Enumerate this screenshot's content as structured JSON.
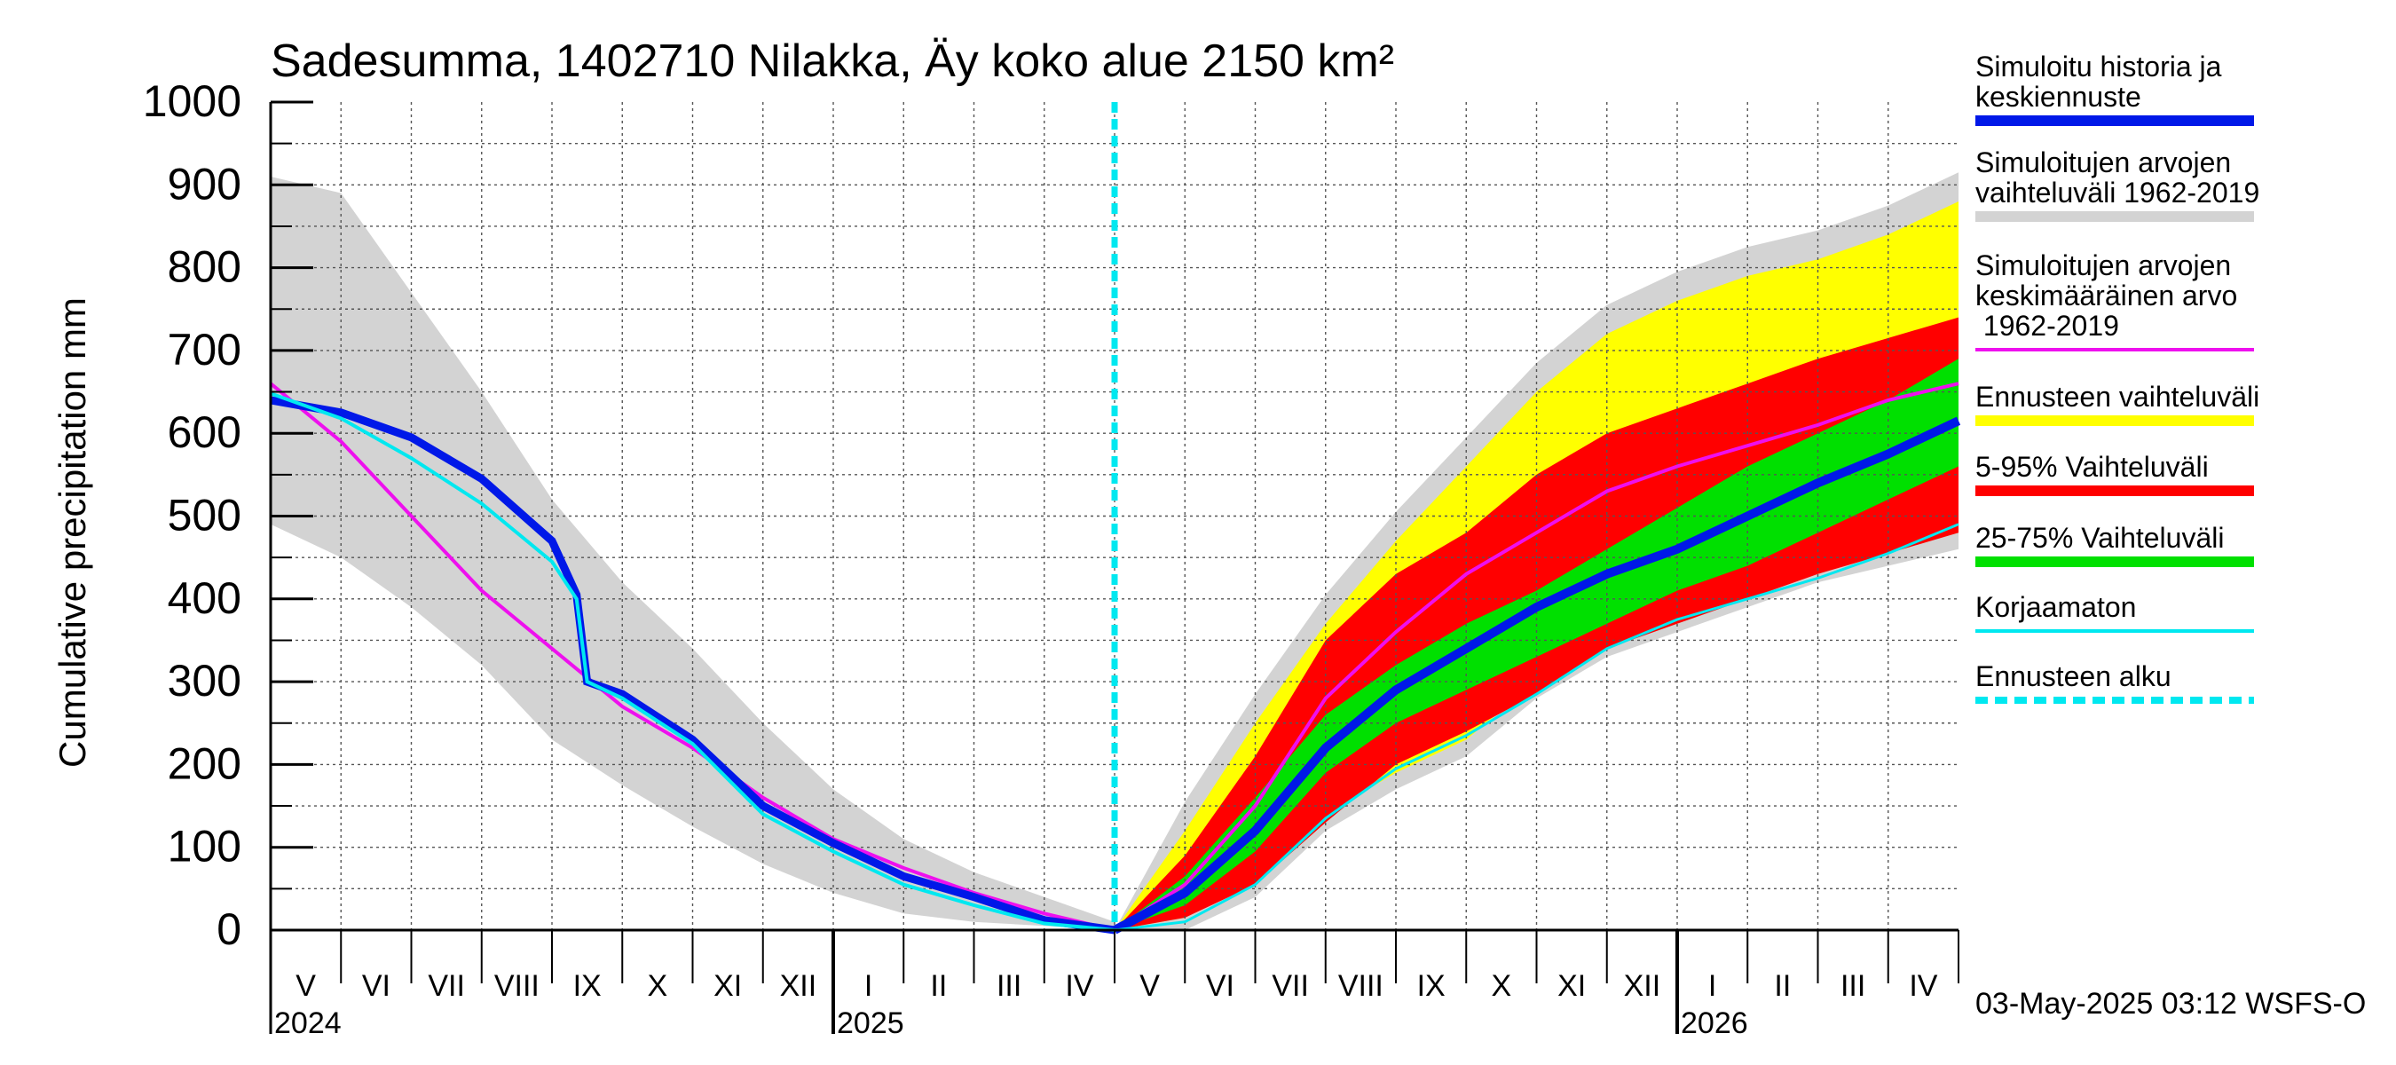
{
  "chart_data": {
    "type": "area",
    "title": "Sadesumma, 1402710 Nilakka, Äy koko alue 2150 km²",
    "ylabel": "Cumulative precipitation   mm",
    "ylim": [
      0,
      1000
    ],
    "yticks": [
      "0",
      "100",
      "200",
      "300",
      "400",
      "500",
      "600",
      "700",
      "800",
      "900",
      "1000"
    ],
    "months": [
      "V",
      "VI",
      "VII",
      "VIII",
      "IX",
      "X",
      "XI",
      "XII",
      "I",
      "II",
      "III",
      "IV",
      "V",
      "VI",
      "VII",
      "VIII",
      "IX",
      "X",
      "XI",
      "XII",
      "I",
      "II",
      "III",
      "IV"
    ],
    "years": [
      {
        "label": "2024",
        "month_index": 0
      },
      {
        "label": "2025",
        "month_index": 8
      },
      {
        "label": "2026",
        "month_index": 20
      }
    ],
    "forecast_start_month": 12,
    "timestamp": "03-May-2025 03:12 WSFS-O",
    "legend": [
      {
        "label": "Simuloitu historia ja keskiennuste",
        "color": "#0018e8",
        "style": "thick"
      },
      {
        "label": "Simuloitujen arvojen vaihteluväli 1962-2019",
        "color": "#d3d3d3",
        "style": "thick"
      },
      {
        "label": "Simuloitujen arvojen keskimääräinen arvo 1962-2019",
        "color": "#ee10ee",
        "style": "thin"
      },
      {
        "label": "Ennusteen vaihteluväli",
        "color": "#ffff00",
        "style": "thick"
      },
      {
        "label": "5-95% Vaihteluväli",
        "color": "#ff0000",
        "style": "thick"
      },
      {
        "label": "25-75% Vaihteluväli",
        "color": "#00e000",
        "style": "thick"
      },
      {
        "label": "Korjaamaton",
        "color": "#00e8f0",
        "style": "thin"
      },
      {
        "label": "Ennusteen alku",
        "color": "#00e8f0",
        "style": "dashed"
      }
    ],
    "series": {
      "history_range": {
        "x": [
          0,
          1,
          2,
          3,
          4,
          5,
          6,
          7,
          8,
          9,
          10,
          11,
          12
        ],
        "upper": [
          910,
          890,
          770,
          650,
          520,
          420,
          340,
          250,
          170,
          110,
          70,
          40,
          10
        ],
        "lower": [
          490,
          450,
          390,
          320,
          230,
          175,
          125,
          80,
          45,
          20,
          10,
          5,
          0
        ]
      },
      "history_mean": {
        "x": [
          0,
          1,
          2,
          3,
          4,
          5,
          6,
          7,
          8,
          9,
          10,
          11,
          12
        ],
        "values": [
          660,
          590,
          500,
          410,
          340,
          270,
          220,
          160,
          110,
          75,
          45,
          20,
          0
        ]
      },
      "simulated": {
        "x": [
          0,
          1,
          2,
          3,
          4,
          4.35,
          4.5,
          5,
          6,
          7,
          8,
          9,
          10,
          11,
          12
        ],
        "values": [
          640,
          625,
          595,
          545,
          470,
          405,
          300,
          285,
          230,
          150,
          105,
          65,
          40,
          12,
          0
        ]
      },
      "uncorrected": {
        "x": [
          0,
          1,
          2,
          3,
          4,
          4.35,
          4.5,
          5,
          6,
          7,
          8,
          9,
          10,
          11,
          12
        ],
        "values": [
          648,
          618,
          570,
          515,
          445,
          400,
          300,
          280,
          225,
          140,
          95,
          55,
          30,
          8,
          0
        ]
      },
      "forecast_range": {
        "x": [
          12,
          13,
          14,
          15,
          16,
          17,
          18,
          19,
          20,
          21,
          22,
          23,
          24
        ],
        "upper": [
          0,
          120,
          250,
          370,
          470,
          560,
          650,
          720,
          760,
          790,
          810,
          840,
          880
        ],
        "lower": [
          0,
          15,
          60,
          140,
          190,
          230,
          300,
          350,
          380,
          410,
          440,
          460,
          480
        ]
      },
      "forecast_5_95": {
        "x": [
          12,
          13,
          14,
          15,
          16,
          17,
          18,
          19,
          20,
          21,
          22,
          23,
          24
        ],
        "upper": [
          0,
          90,
          210,
          350,
          430,
          480,
          550,
          600,
          630,
          660,
          690,
          715,
          740
        ],
        "lower": [
          0,
          15,
          55,
          130,
          200,
          240,
          285,
          340,
          370,
          400,
          430,
          455,
          480
        ]
      },
      "forecast_25_75": {
        "x": [
          12,
          13,
          14,
          15,
          16,
          17,
          18,
          19,
          20,
          21,
          22,
          23,
          24
        ],
        "upper": [
          0,
          65,
          160,
          260,
          320,
          370,
          410,
          460,
          510,
          560,
          600,
          640,
          690
        ],
        "lower": [
          0,
          30,
          95,
          190,
          250,
          290,
          330,
          370,
          410,
          440,
          480,
          520,
          560
        ]
      },
      "forecast_median": {
        "x": [
          12,
          13,
          14,
          15,
          16,
          17,
          18,
          19,
          20,
          21,
          22,
          23,
          24
        ],
        "values": [
          0,
          45,
          120,
          220,
          290,
          340,
          390,
          430,
          460,
          500,
          540,
          575,
          615
        ]
      },
      "forecast_mean": {
        "x": [
          12,
          13,
          14,
          15,
          16,
          17,
          18,
          19,
          20,
          21,
          22,
          23,
          24
        ],
        "values": [
          0,
          55,
          150,
          280,
          360,
          430,
          480,
          530,
          560,
          585,
          610,
          640,
          660
        ]
      },
      "forecast_uncorrected": {
        "x": [
          12,
          13,
          14,
          15,
          16,
          17,
          18,
          19,
          20,
          21,
          22,
          23,
          24
        ],
        "values": [
          0,
          10,
          55,
          135,
          195,
          235,
          285,
          340,
          375,
          400,
          425,
          455,
          490
        ]
      }
    }
  }
}
